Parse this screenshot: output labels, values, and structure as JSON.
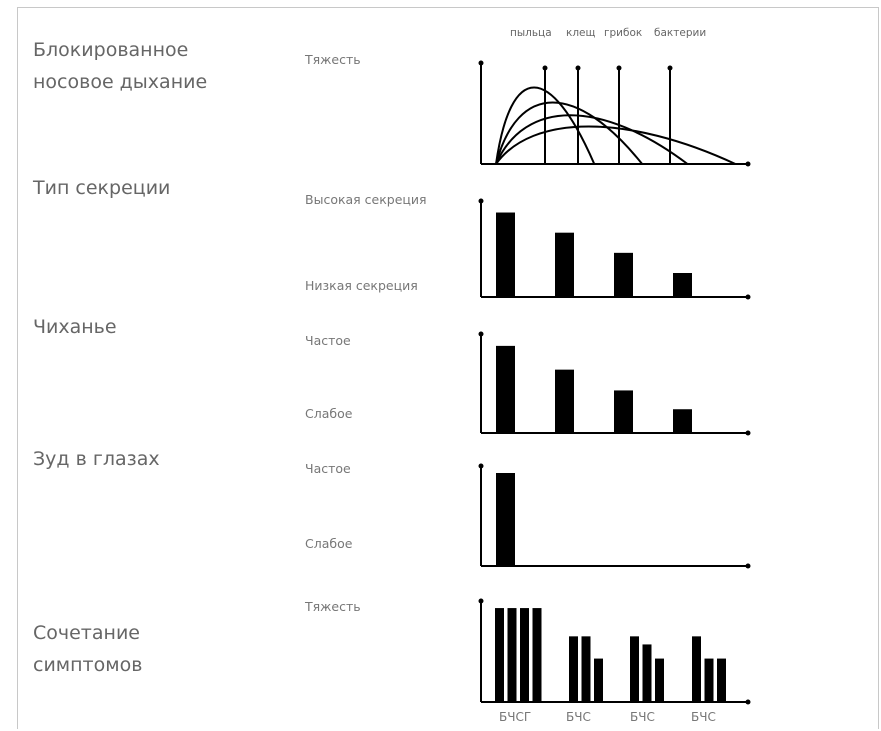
{
  "categories": {
    "blocked": [
      "Блокированное",
      "носовое дыхание"
    ],
    "secretion": "Тип секреции",
    "sneezing": "Чиханье",
    "itch": "Зуд в глазах",
    "combo": [
      "Сочетание",
      "симптомов"
    ]
  },
  "labels": {
    "severity_top": "Тяжесть",
    "high_secretion": "Высокая секреция",
    "low_secretion": "Низкая секреция",
    "sneeze_freq": "Частое",
    "sneeze_weak": "Слабое",
    "itch_freq": "Частое",
    "itch_weak": "Слабое",
    "severity_combo": "Тяжесть"
  },
  "chart_data": [
    {
      "type": "line",
      "series": [
        {
          "name": "пыльца",
          "peak": 0.82,
          "end": 0.39
        },
        {
          "name": "клещ",
          "peak": 0.62,
          "end": 0.58
        },
        {
          "name": "грибок",
          "peak": 0.45,
          "end": 0.76
        },
        {
          "name": "бактерии",
          "peak": 0.3,
          "end": 0.95
        }
      ]
    },
    {
      "type": "bar",
      "values": [
        88,
        67,
        46,
        25
      ],
      "ylim": [
        0,
        100
      ]
    },
    {
      "type": "bar",
      "values": [
        88,
        64,
        43,
        24
      ],
      "ylim": [
        0,
        100
      ]
    },
    {
      "type": "bar",
      "values": [
        93
      ],
      "ylim": [
        0,
        100
      ]
    },
    {
      "type": "bar",
      "categories": [
        "БЧСГ",
        "БЧС",
        "БЧС",
        "БЧС"
      ],
      "groups": [
        [
          93,
          93,
          93,
          93
        ],
        [
          65,
          65,
          43
        ],
        [
          65,
          57,
          43
        ],
        [
          65,
          43,
          43
        ]
      ],
      "ylim": [
        0,
        100
      ]
    }
  ],
  "colors": {
    "ink": "#000000",
    "text": "#666666",
    "frame": "#c8c8c8"
  }
}
